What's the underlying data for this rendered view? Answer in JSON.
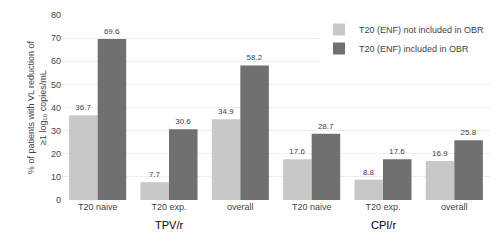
{
  "chart_data": {
    "type": "bar",
    "categories": [
      "T20 naive",
      "T20 exp.",
      "overall",
      "T20 naive",
      "T20 exp.",
      "overall"
    ],
    "annotations": [
      "TPV/r",
      "CPI/r"
    ],
    "series": [
      {
        "name": "T20 (ENF) not included in OBR",
        "color": "#c8c8c8",
        "values": [
          36.7,
          7.7,
          34.9,
          17.6,
          8.8,
          16.9
        ]
      },
      {
        "name": "T20 (ENF) included in OBR",
        "color": "#707070",
        "values": [
          69.6,
          30.6,
          58.2,
          28.7,
          17.6,
          25.8
        ]
      }
    ],
    "y_label": "% of patients with VL reduction of\n≥1 log₁₀ copies/mL",
    "ylim": [
      0,
      80
    ],
    "yticks": [
      0,
      10,
      20,
      30,
      40,
      50,
      60,
      70,
      80
    ],
    "legend": "upper right",
    "data_labels": true,
    "grid": true
  }
}
